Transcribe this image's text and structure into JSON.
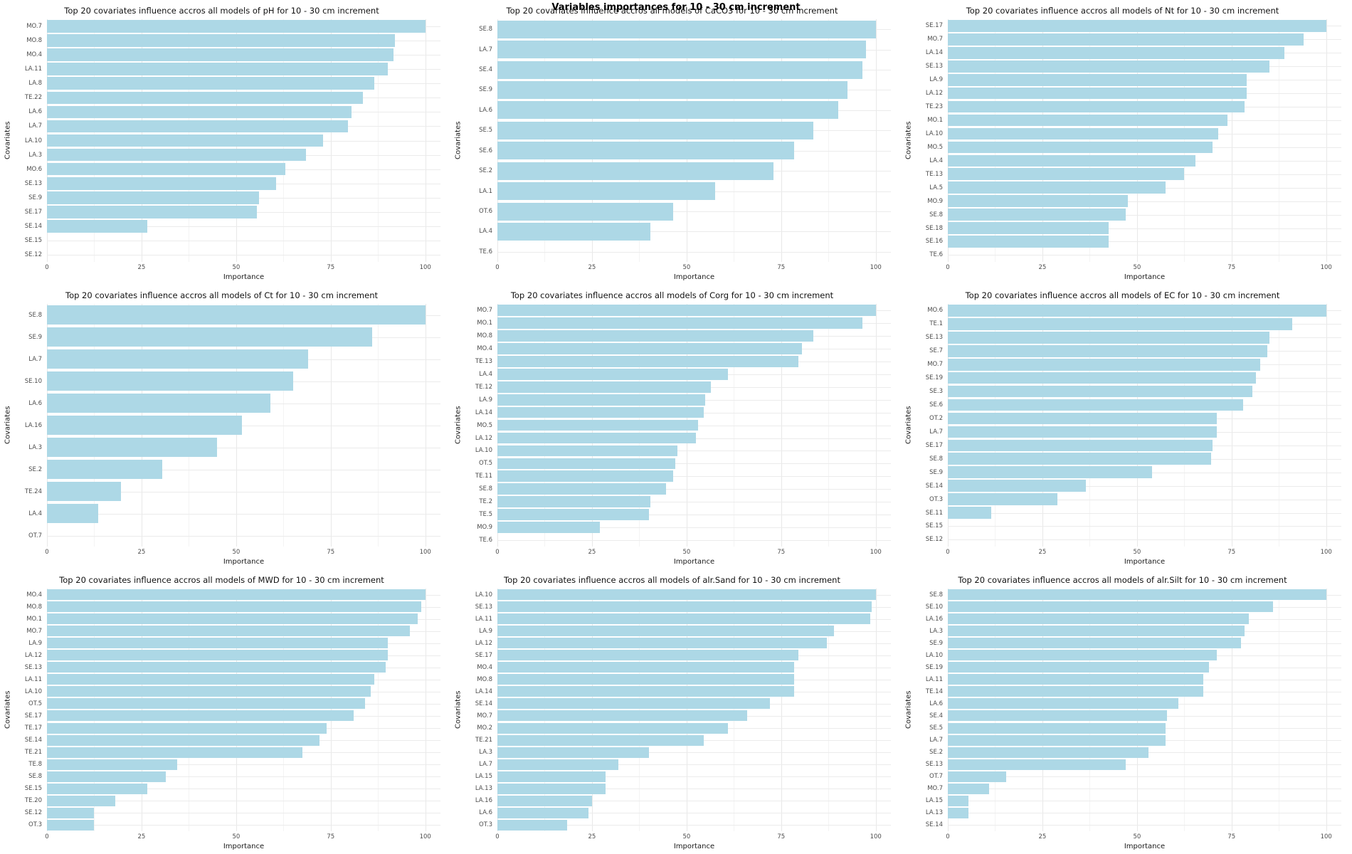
{
  "page_title": "Variables importances for 10 - 30 cm increment",
  "colors": {
    "bar_fill": "#ADD8E6",
    "grid_major": "#E8E8E8",
    "grid_minor": "#F4F4F4",
    "tick_text": "#4D4D4D",
    "axis_label_text": "#1A1A1A",
    "title_text": "#111111",
    "background": "#FFFFFF"
  },
  "axes": {
    "x_label": "Importance",
    "y_label": "Covariates",
    "x_ticks": [
      0,
      25,
      50,
      75,
      100
    ],
    "x_minor_ticks": [
      12.5,
      37.5,
      62.5,
      87.5
    ],
    "x_range": [
      0,
      100
    ],
    "x_display_max": 104
  },
  "chart_data": [
    {
      "type": "bar",
      "orientation": "horizontal",
      "target": "pH",
      "title": "Top 20 covariates influence accros all models of pH for 10 - 30 cm increment",
      "xlabel": "Importance",
      "ylabel": "Covariates",
      "xlim": [
        0,
        100
      ],
      "grid": true,
      "categories": [
        "MO.7",
        "MO.8",
        "MO.4",
        "LA.11",
        "LA.8",
        "TE.22",
        "LA.6",
        "LA.7",
        "LA.10",
        "LA.3",
        "MO.6",
        "SE.13",
        "SE.9",
        "SE.17",
        "SE.14",
        "SE.15",
        "SE.12"
      ],
      "values": [
        100,
        92,
        91.5,
        90,
        86.5,
        83.5,
        80.5,
        79.5,
        73,
        68.5,
        63,
        60.5,
        56,
        55.5,
        26.5,
        0,
        0
      ]
    },
    {
      "type": "bar",
      "orientation": "horizontal",
      "target": "CaCO3",
      "title": "Top 20 covariates influence accros all models of CaCO3 for 10 - 30 cm increment",
      "xlabel": "Importance",
      "ylabel": "Covariates",
      "xlim": [
        0,
        100
      ],
      "grid": true,
      "categories": [
        "SE.8",
        "LA.7",
        "SE.4",
        "SE.9",
        "LA.6",
        "SE.5",
        "SE.6",
        "SE.2",
        "LA.1",
        "OT.6",
        "LA.4",
        "TE.6"
      ],
      "values": [
        100,
        97.5,
        96.5,
        92.5,
        90,
        83.5,
        78.5,
        73,
        57.5,
        46.5,
        40.5,
        0
      ]
    },
    {
      "type": "bar",
      "orientation": "horizontal",
      "target": "Nt",
      "title": "Top 20 covariates influence accros all models of Nt for 10 - 30 cm increment",
      "xlabel": "Importance",
      "ylabel": "Covariates",
      "xlim": [
        0,
        100
      ],
      "grid": true,
      "categories": [
        "SE.17",
        "MO.7",
        "LA.14",
        "SE.13",
        "LA.9",
        "LA.12",
        "TE.23",
        "MO.1",
        "LA.10",
        "MO.5",
        "LA.4",
        "TE.13",
        "LA.5",
        "MO.9",
        "SE.8",
        "SE.18",
        "SE.16",
        "TE.6"
      ],
      "values": [
        100,
        94,
        89,
        85,
        79,
        79,
        78.5,
        74,
        71.5,
        70,
        65.5,
        62.5,
        57.5,
        47.5,
        47,
        42.5,
        42.5,
        0
      ]
    },
    {
      "type": "bar",
      "orientation": "horizontal",
      "target": "Ct",
      "title": "Top 20 covariates influence accros all models of Ct for 10 - 30 cm increment",
      "xlabel": "Importance",
      "ylabel": "Covariates",
      "xlim": [
        0,
        100
      ],
      "grid": true,
      "categories": [
        "SE.8",
        "SE.9",
        "LA.7",
        "SE.10",
        "LA.6",
        "LA.16",
        "LA.3",
        "SE.2",
        "TE.24",
        "LA.4",
        "OT.7"
      ],
      "values": [
        100,
        86,
        69,
        65,
        59,
        51.5,
        45,
        30.5,
        19.5,
        13.5,
        0
      ]
    },
    {
      "type": "bar",
      "orientation": "horizontal",
      "target": "Corg",
      "title": "Top 20 covariates influence accros all models of Corg for 10 - 30 cm increment",
      "xlabel": "Importance",
      "ylabel": "Covariates",
      "xlim": [
        0,
        100
      ],
      "grid": true,
      "categories": [
        "MO.7",
        "MO.1",
        "MO.8",
        "MO.4",
        "TE.13",
        "LA.4",
        "TE.12",
        "LA.9",
        "LA.14",
        "MO.5",
        "LA.12",
        "LA.10",
        "OT.5",
        "TE.11",
        "SE.8",
        "TE.2",
        "TE.5",
        "MO.9",
        "TE.6"
      ],
      "values": [
        100,
        96.5,
        83.5,
        80.5,
        79.5,
        61,
        56.5,
        55,
        54.5,
        53,
        52.5,
        47.5,
        47,
        46.5,
        44.5,
        40.5,
        40,
        27,
        0
      ]
    },
    {
      "type": "bar",
      "orientation": "horizontal",
      "target": "EC",
      "title": "Top 20 covariates influence accros all models of EC for 10 - 30 cm increment",
      "xlabel": "Importance",
      "ylabel": "Covariates",
      "xlim": [
        0,
        100
      ],
      "grid": true,
      "categories": [
        "MO.6",
        "TE.1",
        "SE.13",
        "SE.7",
        "MO.7",
        "SE.19",
        "SE.3",
        "SE.6",
        "OT.2",
        "LA.7",
        "SE.17",
        "SE.8",
        "SE.9",
        "SE.14",
        "OT.3",
        "SE.11",
        "SE.15",
        "SE.12"
      ],
      "values": [
        100,
        91,
        85,
        84.5,
        82.5,
        81.5,
        80.5,
        78,
        71,
        71,
        70,
        69.5,
        54,
        36.5,
        29,
        11.5,
        0,
        0
      ]
    },
    {
      "type": "bar",
      "orientation": "horizontal",
      "target": "MWD",
      "title": "Top 20 covariates influence accros all models of MWD for 10 - 30 cm increment",
      "xlabel": "Importance",
      "ylabel": "Covariates",
      "xlim": [
        0,
        100
      ],
      "grid": true,
      "categories": [
        "MO.4",
        "MO.8",
        "MO.1",
        "MO.7",
        "LA.9",
        "LA.12",
        "SE.13",
        "LA.11",
        "LA.10",
        "OT.5",
        "SE.17",
        "TE.17",
        "SE.14",
        "TE.21",
        "TE.8",
        "SE.8",
        "SE.15",
        "TE.20",
        "SE.12",
        "OT.3"
      ],
      "values": [
        100,
        99,
        98,
        96,
        90,
        90,
        89.5,
        86.5,
        85.5,
        84,
        81,
        74,
        72,
        67.5,
        34.5,
        31.5,
        26.5,
        18,
        12.5,
        12.5
      ]
    },
    {
      "type": "bar",
      "orientation": "horizontal",
      "target": "alr.Sand",
      "title": "Top 20 covariates influence accros all models of alr.Sand for 10 - 30 cm increment",
      "xlabel": "Importance",
      "ylabel": "Covariates",
      "xlim": [
        0,
        100
      ],
      "grid": true,
      "categories": [
        "LA.10",
        "SE.13",
        "LA.11",
        "LA.9",
        "LA.12",
        "SE.17",
        "MO.4",
        "MO.8",
        "LA.14",
        "SE.14",
        "MO.7",
        "MO.2",
        "TE.21",
        "LA.3",
        "LA.7",
        "LA.15",
        "LA.13",
        "LA.16",
        "LA.6",
        "OT.3"
      ],
      "values": [
        100,
        99,
        98.5,
        89,
        87,
        79.5,
        78.5,
        78.5,
        78.5,
        72,
        66,
        61,
        54.5,
        40,
        32,
        28.5,
        28.5,
        25,
        24,
        18.5
      ]
    },
    {
      "type": "bar",
      "orientation": "horizontal",
      "target": "alr.Silt",
      "title": "Top 20 covariates influence accros all models of alr.Silt for 10 - 30 cm increment",
      "xlabel": "Importance",
      "ylabel": "Covariates",
      "xlim": [
        0,
        100
      ],
      "grid": true,
      "categories": [
        "SE.8",
        "SE.10",
        "LA.16",
        "LA.3",
        "SE.9",
        "LA.10",
        "SE.19",
        "LA.11",
        "TE.14",
        "LA.6",
        "SE.4",
        "SE.5",
        "LA.7",
        "SE.2",
        "SE.13",
        "OT.7",
        "MO.7",
        "LA.15",
        "LA.13",
        "SE.14"
      ],
      "values": [
        100,
        86,
        79.5,
        78.5,
        77.5,
        71,
        69,
        67.5,
        67.5,
        61,
        58,
        57.5,
        57.5,
        53,
        47,
        15.5,
        11,
        5.5,
        5.5,
        0
      ]
    }
  ]
}
